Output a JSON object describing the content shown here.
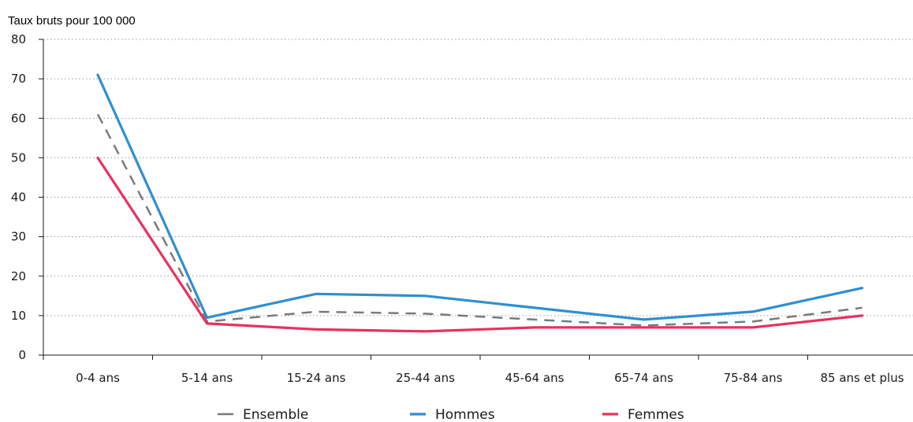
{
  "chart_data": {
    "type": "line",
    "ylabel": "Taux bruts pour 100 000",
    "xlabel": "",
    "ylim": [
      0,
      80
    ],
    "yticks": [
      0,
      10,
      20,
      30,
      40,
      50,
      60,
      70,
      80
    ],
    "grid": "horizontal dotted",
    "legend_position": "bottom",
    "categories": [
      "0-4 ans",
      "5-14 ans",
      "15-24 ans",
      "25-44 ans",
      "45-64 ans",
      "65-74 ans",
      "75-84 ans",
      "85 ans et plus"
    ],
    "series": [
      {
        "name": "Ensemble",
        "color": "#7a7a7a",
        "style": "dashed",
        "values": [
          61,
          8.5,
          11,
          10.5,
          9,
          7.5,
          8.5,
          12
        ]
      },
      {
        "name": "Hommes",
        "color": "#2f8fd0",
        "style": "solid",
        "values": [
          71,
          9.5,
          15.5,
          15,
          12,
          9,
          11,
          17
        ]
      },
      {
        "name": "Femmes",
        "color": "#e8315f",
        "style": "solid",
        "values": [
          50,
          8,
          6.5,
          6,
          7,
          7,
          7,
          10
        ]
      }
    ]
  }
}
